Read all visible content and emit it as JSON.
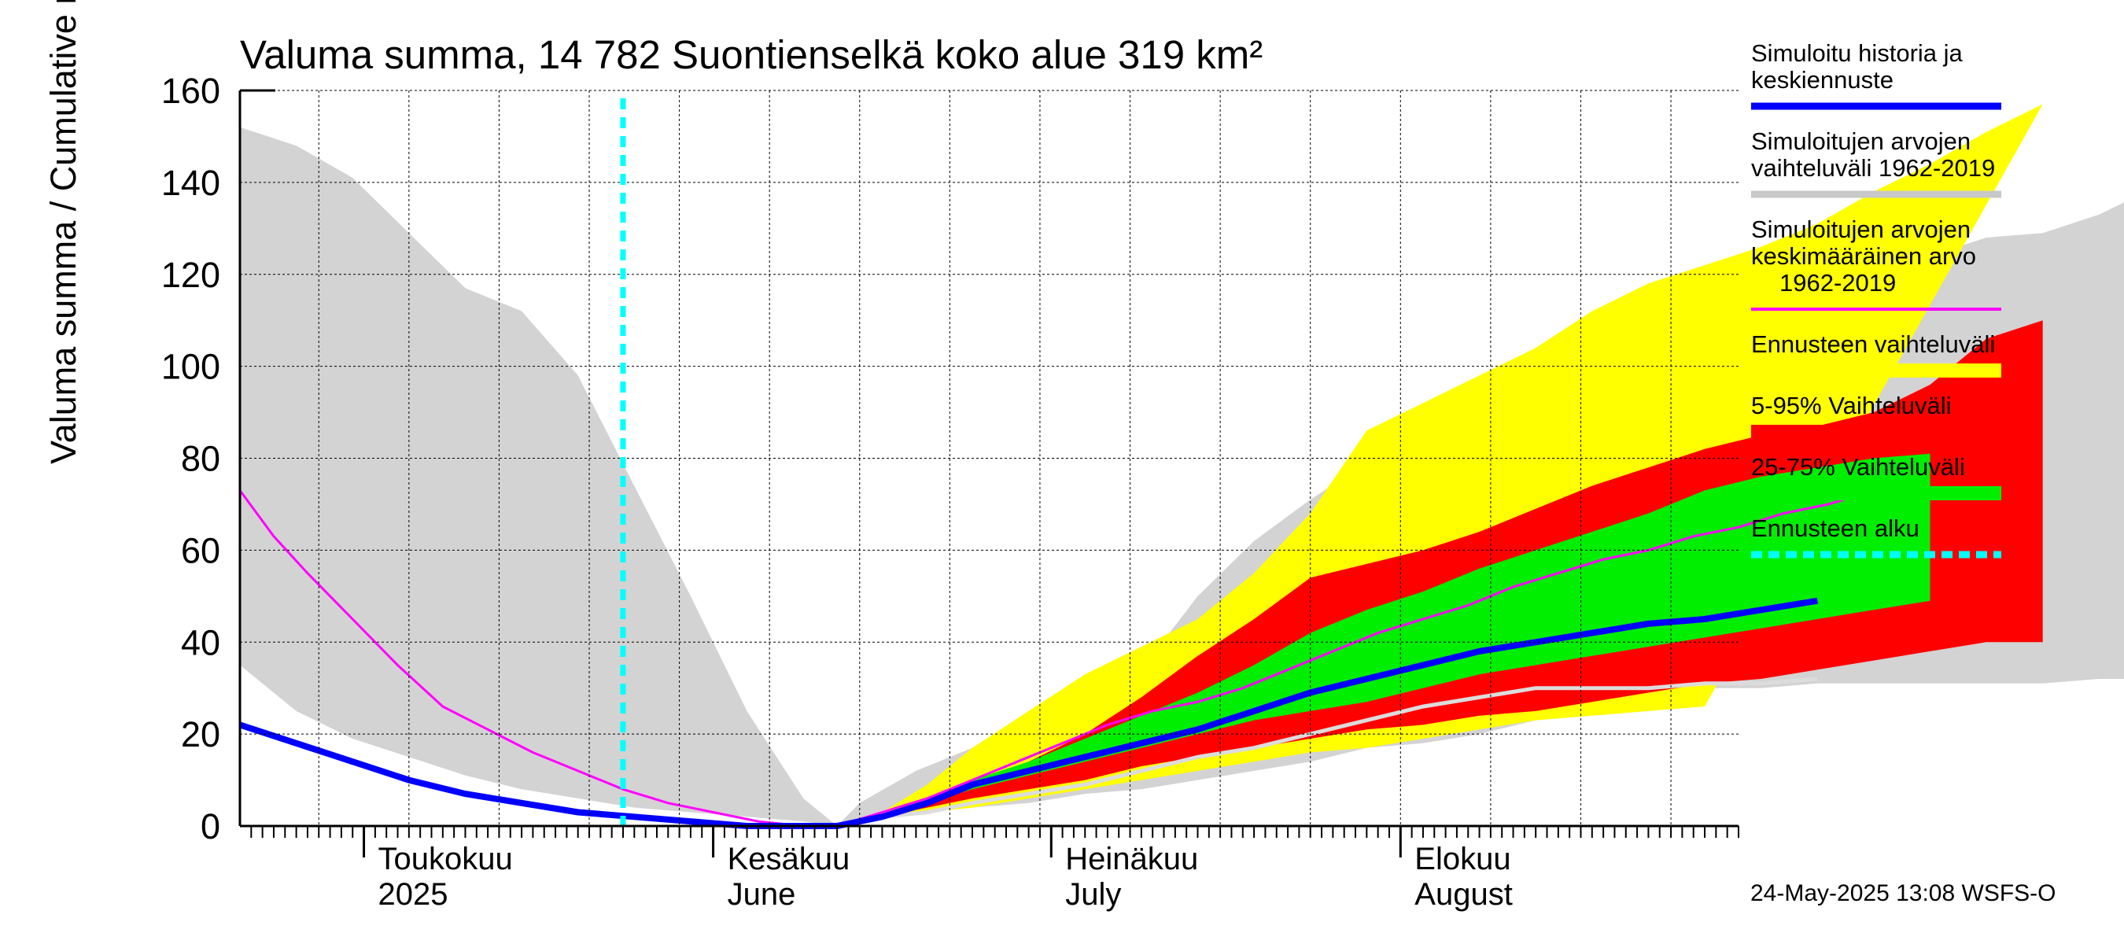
{
  "chart_data": {
    "type": "area",
    "title": "Valuma summa, 14 782 Suontienselkä koko alue 319 km²",
    "ylabel": "Valuma summa / Cumulative runoff    mm",
    "ylim": [
      0,
      160
    ],
    "yticks": [
      "0",
      "20",
      "40",
      "60",
      "80",
      "100",
      "120",
      "140",
      "160"
    ],
    "grid": true,
    "legend_position": "right",
    "x_range": [
      "2025-04-20",
      "2025-08-31"
    ],
    "months": [
      {
        "fi": "Toukokuu",
        "en": "2025",
        "date": "2025-05-01"
      },
      {
        "fi": "Kesäkuu",
        "en": "June",
        "date": "2025-06-01"
      },
      {
        "fi": "Heinäkuu",
        "en": "July",
        "date": "2025-07-01"
      },
      {
        "fi": "Elokuu",
        "en": "August",
        "date": "2025-08-01"
      }
    ],
    "forecast_start": "2025-05-24",
    "timestamp": "24-May-2025 13:08 WSFS-O",
    "legend": [
      {
        "label_lines": [
          "Simuloitu historia ja",
          "keskiennuste"
        ],
        "color": "#0000ff",
        "style": "thick"
      },
      {
        "label_lines": [
          "Simuloitujen arvojen",
          "vaihteluväli 1962-2019"
        ],
        "color": "#c8c8c8",
        "style": "thick"
      },
      {
        "label_lines": [
          "Simuloitujen arvojen",
          "keskimääräinen arvo",
          "1962-2019"
        ],
        "color": "#ff00ff",
        "style": "thin"
      },
      {
        "label_lines": [
          "Ennusteen vaihteluväli"
        ],
        "color": "#ffff00",
        "style": "band"
      },
      {
        "label_lines": [
          "5-95% Vaihteluväli"
        ],
        "color": "#ff0000",
        "style": "band"
      },
      {
        "label_lines": [
          "25-75% Vaihteluväli"
        ],
        "color": "#00ee00",
        "style": "band"
      },
      {
        "label_lines": [
          "Ennusteen alku"
        ],
        "color": "#00ffff",
        "style": "dashed"
      }
    ],
    "series": {
      "hist_range_upper": [
        [
          0,
          152
        ],
        [
          5,
          148
        ],
        [
          10,
          141
        ],
        [
          15,
          129
        ],
        [
          20,
          117
        ],
        [
          25,
          112
        ],
        [
          30,
          98
        ],
        [
          35,
          74
        ],
        [
          40,
          50
        ],
        [
          45,
          25
        ],
        [
          50,
          6
        ],
        [
          53,
          0
        ],
        [
          55,
          5
        ],
        [
          60,
          12
        ],
        [
          65,
          17
        ],
        [
          70,
          24
        ],
        [
          75,
          28
        ],
        [
          80,
          34
        ],
        [
          85,
          50
        ],
        [
          90,
          62
        ],
        [
          95,
          71
        ],
        [
          100,
          79
        ],
        [
          105,
          88
        ],
        [
          110,
          92
        ],
        [
          115,
          95
        ],
        [
          120,
          97
        ],
        [
          125,
          101
        ],
        [
          130,
          105
        ],
        [
          135,
          109
        ],
        [
          140,
          114
        ],
        [
          145,
          120
        ],
        [
          150,
          124
        ],
        [
          155,
          128
        ],
        [
          160,
          129
        ],
        [
          165,
          133
        ],
        [
          170,
          139
        ],
        [
          175,
          144
        ]
      ],
      "hist_range_lower": [
        [
          0,
          35
        ],
        [
          5,
          25
        ],
        [
          10,
          19
        ],
        [
          15,
          15
        ],
        [
          20,
          11
        ],
        [
          25,
          8
        ],
        [
          30,
          6
        ],
        [
          35,
          4
        ],
        [
          40,
          3
        ],
        [
          45,
          2
        ],
        [
          50,
          1
        ],
        [
          53,
          0
        ],
        [
          60,
          3
        ],
        [
          65,
          4
        ],
        [
          70,
          5
        ],
        [
          75,
          7
        ],
        [
          80,
          8
        ],
        [
          85,
          10
        ],
        [
          90,
          12
        ],
        [
          95,
          14
        ],
        [
          100,
          17
        ],
        [
          105,
          18
        ],
        [
          110,
          20
        ],
        [
          115,
          23
        ],
        [
          120,
          26
        ],
        [
          125,
          28
        ],
        [
          130,
          30
        ],
        [
          135,
          30
        ],
        [
          140,
          31
        ],
        [
          145,
          31
        ],
        [
          150,
          31
        ],
        [
          155,
          31
        ],
        [
          160,
          31
        ],
        [
          165,
          32
        ],
        [
          170,
          32
        ],
        [
          175,
          32
        ]
      ],
      "hist_mean": [
        [
          0,
          73
        ],
        [
          3,
          63
        ],
        [
          6,
          55
        ],
        [
          10,
          45
        ],
        [
          14,
          35
        ],
        [
          18,
          26
        ],
        [
          22,
          21
        ],
        [
          26,
          16
        ],
        [
          30,
          12
        ],
        [
          34,
          8
        ],
        [
          38,
          5
        ],
        [
          42,
          3
        ],
        [
          46,
          1
        ],
        [
          50,
          0
        ],
        [
          53,
          0
        ],
        [
          57,
          3
        ],
        [
          61,
          6
        ],
        [
          65,
          10
        ],
        [
          69,
          14
        ],
        [
          73,
          18
        ],
        [
          77,
          22
        ],
        [
          81,
          25
        ],
        [
          85,
          27
        ],
        [
          89,
          30
        ],
        [
          93,
          34
        ],
        [
          97,
          38
        ],
        [
          101,
          42
        ],
        [
          105,
          45
        ],
        [
          109,
          48
        ],
        [
          113,
          52
        ],
        [
          117,
          55
        ],
        [
          121,
          58
        ],
        [
          125,
          60
        ],
        [
          129,
          63
        ],
        [
          133,
          65
        ],
        [
          137,
          68
        ],
        [
          141,
          70
        ],
        [
          145,
          73
        ]
      ],
      "forecast_range_upper": [
        [
          53,
          0
        ],
        [
          57,
          3
        ],
        [
          61,
          9
        ],
        [
          65,
          17
        ],
        [
          70,
          25
        ],
        [
          75,
          33
        ],
        [
          80,
          39
        ],
        [
          85,
          45
        ],
        [
          90,
          55
        ],
        [
          95,
          68
        ],
        [
          100,
          86
        ],
        [
          105,
          92
        ],
        [
          110,
          98
        ],
        [
          115,
          104
        ],
        [
          120,
          112
        ],
        [
          125,
          118
        ],
        [
          130,
          122
        ],
        [
          135,
          126
        ],
        [
          140,
          131
        ],
        [
          145,
          138
        ],
        [
          150,
          144
        ],
        [
          155,
          151
        ],
        [
          160,
          157
        ]
      ],
      "forecast_range_lower": [
        [
          53,
          0
        ],
        [
          57,
          2
        ],
        [
          61,
          3
        ],
        [
          65,
          4
        ],
        [
          70,
          6
        ],
        [
          75,
          8
        ],
        [
          80,
          10
        ],
        [
          85,
          12
        ],
        [
          90,
          14
        ],
        [
          95,
          16
        ],
        [
          100,
          17
        ],
        [
          105,
          19
        ],
        [
          110,
          21
        ],
        [
          115,
          23
        ],
        [
          120,
          24
        ],
        [
          125,
          25
        ],
        [
          130,
          26
        ]
      ],
      "p5_95_upper": [
        [
          53,
          0
        ],
        [
          57,
          2
        ],
        [
          61,
          5
        ],
        [
          65,
          9
        ],
        [
          70,
          14
        ],
        [
          75,
          20
        ],
        [
          80,
          28
        ],
        [
          85,
          37
        ],
        [
          90,
          45
        ],
        [
          95,
          54
        ],
        [
          100,
          57
        ],
        [
          105,
          60
        ],
        [
          110,
          64
        ],
        [
          115,
          69
        ],
        [
          120,
          74
        ],
        [
          125,
          78
        ],
        [
          130,
          82
        ],
        [
          135,
          85
        ],
        [
          140,
          87
        ],
        [
          145,
          90
        ],
        [
          150,
          96
        ],
        [
          155,
          106
        ],
        [
          160,
          110
        ]
      ],
      "p5_95_lower": [
        [
          53,
          0
        ],
        [
          57,
          2
        ],
        [
          61,
          4
        ],
        [
          65,
          6
        ],
        [
          70,
          8
        ],
        [
          75,
          10
        ],
        [
          80,
          13
        ],
        [
          85,
          15
        ],
        [
          90,
          17
        ],
        [
          95,
          19
        ],
        [
          100,
          21
        ],
        [
          105,
          22
        ],
        [
          110,
          24
        ],
        [
          115,
          25
        ],
        [
          120,
          27
        ],
        [
          125,
          29
        ],
        [
          130,
          31
        ],
        [
          135,
          32
        ],
        [
          140,
          34
        ],
        [
          145,
          36
        ],
        [
          150,
          38
        ],
        [
          155,
          40
        ],
        [
          160,
          40
        ]
      ],
      "p25_75_upper": [
        [
          53,
          0
        ],
        [
          57,
          3
        ],
        [
          61,
          6
        ],
        [
          65,
          10
        ],
        [
          70,
          14
        ],
        [
          75,
          19
        ],
        [
          80,
          24
        ],
        [
          85,
          29
        ],
        [
          90,
          35
        ],
        [
          95,
          42
        ],
        [
          100,
          47
        ],
        [
          105,
          51
        ],
        [
          110,
          56
        ],
        [
          115,
          60
        ],
        [
          120,
          64
        ],
        [
          125,
          68
        ],
        [
          130,
          73
        ],
        [
          135,
          76
        ],
        [
          140,
          78
        ],
        [
          145,
          80
        ],
        [
          150,
          81
        ]
      ],
      "p25_75_lower": [
        [
          53,
          0
        ],
        [
          57,
          3
        ],
        [
          61,
          5
        ],
        [
          65,
          8
        ],
        [
          70,
          11
        ],
        [
          75,
          14
        ],
        [
          80,
          17
        ],
        [
          85,
          20
        ],
        [
          90,
          23
        ],
        [
          95,
          25
        ],
        [
          100,
          27
        ],
        [
          105,
          30
        ],
        [
          110,
          33
        ],
        [
          115,
          35
        ],
        [
          120,
          37
        ],
        [
          125,
          39
        ],
        [
          130,
          41
        ],
        [
          135,
          43
        ],
        [
          140,
          45
        ],
        [
          145,
          47
        ],
        [
          150,
          49
        ]
      ],
      "median_forecast": [
        [
          0,
          22
        ],
        [
          5,
          18
        ],
        [
          10,
          14
        ],
        [
          15,
          10
        ],
        [
          20,
          7
        ],
        [
          25,
          5
        ],
        [
          30,
          3
        ],
        [
          35,
          2
        ],
        [
          40,
          1
        ],
        [
          45,
          0
        ],
        [
          53,
          0
        ],
        [
          57,
          2
        ],
        [
          61,
          5
        ],
        [
          65,
          9
        ],
        [
          70,
          12
        ],
        [
          75,
          15
        ],
        [
          80,
          18
        ],
        [
          85,
          21
        ],
        [
          90,
          25
        ],
        [
          95,
          29
        ],
        [
          100,
          32
        ],
        [
          105,
          35
        ],
        [
          110,
          38
        ],
        [
          115,
          40
        ],
        [
          120,
          42
        ],
        [
          125,
          44
        ],
        [
          130,
          45
        ],
        [
          135,
          47
        ],
        [
          140,
          49
        ]
      ],
      "grey_line": [
        [
          53,
          0
        ],
        [
          57,
          2
        ],
        [
          61,
          3
        ],
        [
          65,
          5
        ],
        [
          70,
          7
        ],
        [
          75,
          9
        ],
        [
          80,
          12
        ],
        [
          85,
          15
        ],
        [
          90,
          17
        ],
        [
          95,
          20
        ],
        [
          100,
          23
        ],
        [
          105,
          26
        ],
        [
          110,
          28
        ],
        [
          115,
          30
        ],
        [
          120,
          30
        ],
        [
          125,
          30
        ],
        [
          130,
          31
        ],
        [
          135,
          31
        ],
        [
          140,
          32
        ]
      ]
    }
  }
}
